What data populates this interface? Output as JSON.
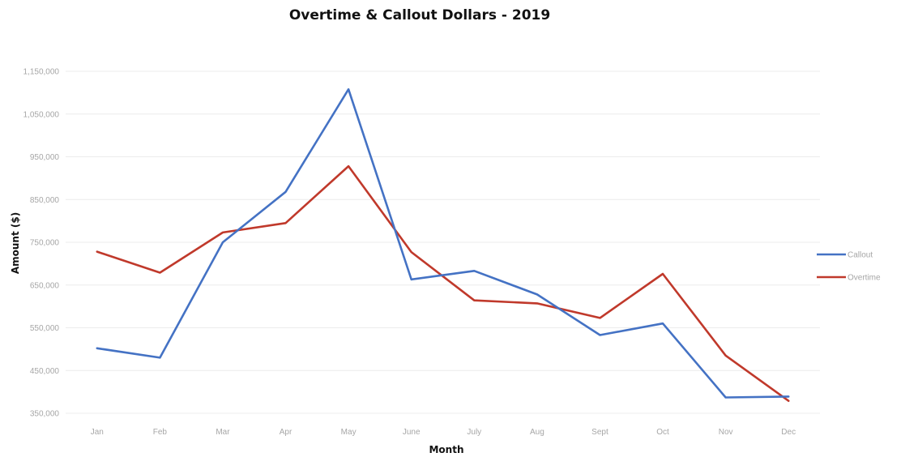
{
  "chart_data": {
    "type": "line",
    "title": "Overtime & Callout Dollars - 2019",
    "xlabel": "Month",
    "ylabel": "Amount ($)",
    "categories": [
      "Jan",
      "Feb",
      "Mar",
      "Apr",
      "May",
      "June",
      "July",
      "Aug",
      "Sept",
      "Oct",
      "Nov",
      "Dec"
    ],
    "ylim": [
      350000,
      1150000
    ],
    "yticks": [
      350000,
      450000,
      550000,
      650000,
      750000,
      850000,
      950000,
      1050000,
      1150000
    ],
    "ytick_labels": [
      "350,000",
      "450,000",
      "550,000",
      "650,000",
      "750,000",
      "850,000",
      "950,000",
      "1,050,000",
      "1,150,000"
    ],
    "grid": true,
    "legend_position": "right",
    "series": [
      {
        "name": "Callout",
        "color": "#4472c4",
        "values": [
          502000,
          480000,
          750000,
          868000,
          1108000,
          663000,
          683000,
          628000,
          533000,
          560000,
          387000,
          389000
        ]
      },
      {
        "name": "Overtime",
        "color": "#c0392b",
        "values": [
          728000,
          679000,
          773000,
          795000,
          928000,
          727000,
          614000,
          607000,
          573000,
          676000,
          485000,
          379000
        ]
      }
    ]
  }
}
